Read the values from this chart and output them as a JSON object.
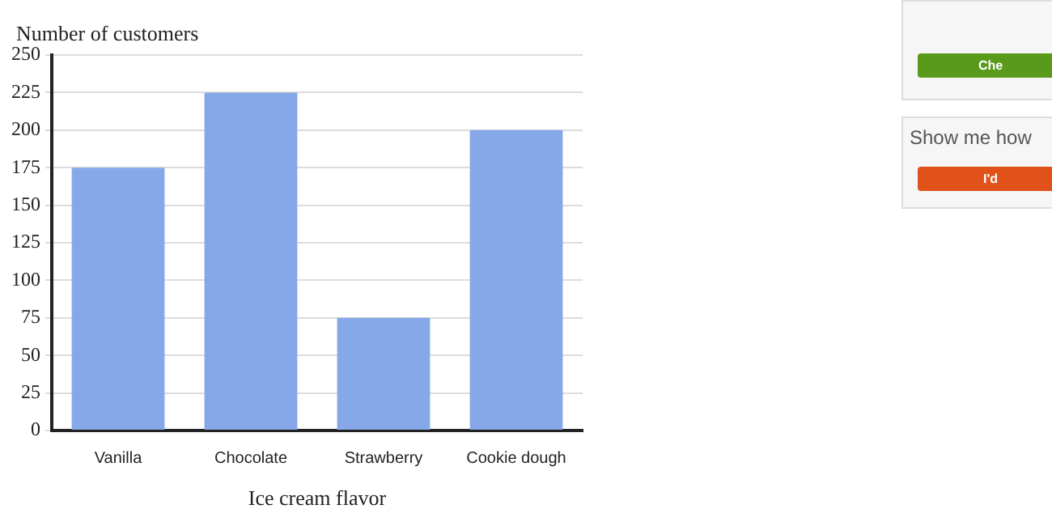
{
  "chart_data": [
    {
      "type": "bar",
      "ylabel": "Number of customers",
      "xlabel": "Ice cream flavor",
      "categories": [
        "Vanilla",
        "Chocolate",
        "Strawberry",
        "Cookie dough"
      ],
      "values": [
        175,
        225,
        75,
        200
      ],
      "color": "#86a8e8",
      "ylim": [
        0,
        250
      ],
      "yticks": [
        0,
        25,
        50,
        75,
        100,
        125,
        150,
        175,
        200,
        225,
        250
      ],
      "grid": "y",
      "legend": false
    },
    {
      "type": "other",
      "annotations": [
        "Che",
        "Show me how",
        "I'd"
      ]
    }
  ]
}
